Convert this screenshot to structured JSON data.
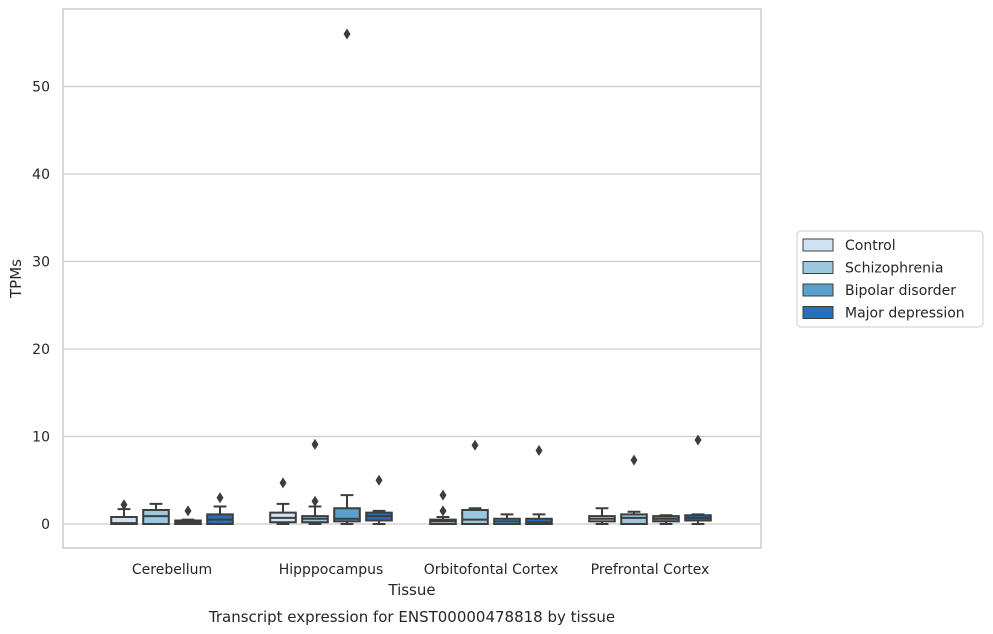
{
  "chart_data": {
    "type": "box",
    "title": "Transcript expression for ENST00000478818 by tissue",
    "xlabel": "Tissue",
    "ylabel": "TPMs",
    "ylim": [
      -2.8,
      59.0
    ],
    "yticks": [
      0,
      10,
      20,
      30,
      40,
      50
    ],
    "grid": "horizontal",
    "legend_position": "center-right, outside plot",
    "categories": [
      "Cerebellum",
      "Hipppocampus",
      "Orbitofontal Cortex",
      "Prefrontal Cortex"
    ],
    "series": [
      {
        "name": "Control",
        "color": "#d0e2f2",
        "boxes": [
          {
            "whislo": 0.0,
            "q1": 0.0,
            "med": 0.1,
            "q3": 0.8,
            "whishi": 1.7,
            "fliers": [
              2.2
            ]
          },
          {
            "whislo": 0.0,
            "q1": 0.2,
            "med": 0.7,
            "q3": 1.3,
            "whishi": 2.3,
            "fliers": [
              4.7
            ]
          },
          {
            "whislo": 0.0,
            "q1": 0.0,
            "med": 0.3,
            "q3": 0.5,
            "whishi": 0.8,
            "fliers": [
              1.5,
              3.3
            ]
          },
          {
            "whislo": 0.0,
            "q1": 0.3,
            "med": 0.6,
            "q3": 0.9,
            "whishi": 1.8,
            "fliers": []
          }
        ]
      },
      {
        "name": "Schizophrenia",
        "color": "#9ac8e0",
        "boxes": [
          {
            "whislo": 0.0,
            "q1": 0.0,
            "med": 0.9,
            "q3": 1.6,
            "whishi": 2.3,
            "fliers": []
          },
          {
            "whislo": 0.0,
            "q1": 0.2,
            "med": 0.6,
            "q3": 0.9,
            "whishi": 2.0,
            "fliers": [
              2.6,
              9.1
            ]
          },
          {
            "whislo": 0.0,
            "q1": 0.0,
            "med": 0.5,
            "q3": 1.6,
            "whishi": 1.8,
            "fliers": [
              9.0
            ]
          },
          {
            "whislo": 0.0,
            "q1": 0.0,
            "med": 0.7,
            "q3": 1.1,
            "whishi": 1.4,
            "fliers": [
              7.3
            ]
          }
        ]
      },
      {
        "name": "Bipolar disorder",
        "color": "#5aa0cc",
        "boxes": [
          {
            "whislo": 0.0,
            "q1": 0.0,
            "med": 0.2,
            "q3": 0.4,
            "whislo_dup": 0.0,
            "whishi": 0.5,
            "fliers": [
              1.5
            ]
          },
          {
            "whislo": 0.0,
            "q1": 0.3,
            "med": 0.6,
            "q3": 1.8,
            "whishi": 3.3,
            "fliers": [
              56.0
            ]
          },
          {
            "whislo": 0.0,
            "q1": 0.0,
            "med": 0.3,
            "q3": 0.6,
            "whishi": 1.1,
            "fliers": []
          },
          {
            "whislo": 0.0,
            "q1": 0.3,
            "med": 0.6,
            "q3": 0.9,
            "whishi": 1.0,
            "fliers": []
          }
        ]
      },
      {
        "name": "Major depression",
        "color": "#2670b7",
        "boxes": [
          {
            "whislo": 0.0,
            "q1": 0.0,
            "med": 0.5,
            "q3": 1.1,
            "whishi": 2.0,
            "fliers": [
              3.0
            ]
          },
          {
            "whislo": 0.0,
            "q1": 0.4,
            "med": 0.9,
            "q3": 1.3,
            "whishi": 1.5,
            "fliers": [
              5.0
            ]
          },
          {
            "whislo": 0.0,
            "q1": 0.0,
            "med": 0.2,
            "q3": 0.6,
            "whishi": 1.1,
            "fliers": [
              8.4
            ]
          },
          {
            "whislo": 0.0,
            "q1": 0.4,
            "med": 0.7,
            "q3": 1.0,
            "whishi": 1.1,
            "fliers": [
              9.6
            ]
          }
        ]
      }
    ]
  }
}
